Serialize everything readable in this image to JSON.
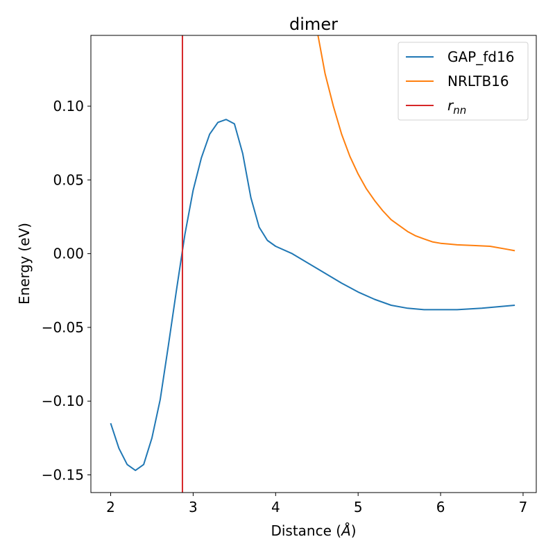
{
  "chart_data": {
    "type": "line",
    "title": "dimer",
    "xlabel": "Distance (",
    "xlabel_symbol": "Å",
    "xlabel_suffix": ")",
    "ylabel": "Energy (eV)",
    "xlim": [
      1.76,
      7.16
    ],
    "ylim": [
      -0.162,
      0.148
    ],
    "xticks": [
      2,
      3,
      4,
      5,
      6,
      7
    ],
    "xtick_labels": [
      "2",
      "3",
      "4",
      "5",
      "6",
      "7"
    ],
    "yticks": [
      0.1,
      0.05,
      0.0,
      -0.05,
      -0.1,
      -0.15
    ],
    "ytick_labels": [
      "0.10",
      "0.05",
      "0.00",
      "−0.05",
      "−0.10",
      "−0.15"
    ],
    "grid": false,
    "legend_position": "top-right",
    "series": [
      {
        "name": "GAP_fd16",
        "color": "#1f77b4",
        "x": [
          2.0,
          2.1,
          2.2,
          2.3,
          2.4,
          2.5,
          2.6,
          2.7,
          2.8,
          2.9,
          3.0,
          3.1,
          3.2,
          3.3,
          3.4,
          3.5,
          3.6,
          3.7,
          3.8,
          3.9,
          4.0,
          4.2,
          4.5,
          4.8,
          5.0,
          5.2,
          5.4,
          5.6,
          5.8,
          6.0,
          6.2,
          6.5,
          6.9
        ],
        "values": [
          -0.115,
          -0.132,
          -0.143,
          -0.147,
          -0.143,
          -0.125,
          -0.099,
          -0.062,
          -0.024,
          0.013,
          0.043,
          0.065,
          0.081,
          0.089,
          0.091,
          0.088,
          0.068,
          0.038,
          0.018,
          0.009,
          0.005,
          0.0,
          -0.01,
          -0.02,
          -0.026,
          -0.031,
          -0.035,
          -0.037,
          -0.038,
          -0.038,
          -0.038,
          -0.037,
          -0.035
        ]
      },
      {
        "name": "NRLTB16",
        "color": "#ff7f0e",
        "x": [
          4.5,
          4.6,
          4.7,
          4.8,
          4.9,
          5.0,
          5.1,
          5.2,
          5.3,
          5.4,
          5.5,
          5.6,
          5.7,
          5.8,
          5.9,
          6.0,
          6.1,
          6.2,
          6.4,
          6.6,
          6.8,
          6.9
        ],
        "values": [
          0.152,
          0.122,
          0.1,
          0.081,
          0.066,
          0.054,
          0.044,
          0.036,
          0.029,
          0.023,
          0.019,
          0.015,
          0.012,
          0.01,
          0.008,
          0.007,
          0.0065,
          0.006,
          0.0055,
          0.005,
          0.003,
          0.002
        ]
      }
    ],
    "vlines": [
      {
        "name": "r",
        "name_subscript": "nn",
        "color": "#d62728",
        "x": 2.87
      }
    ]
  }
}
